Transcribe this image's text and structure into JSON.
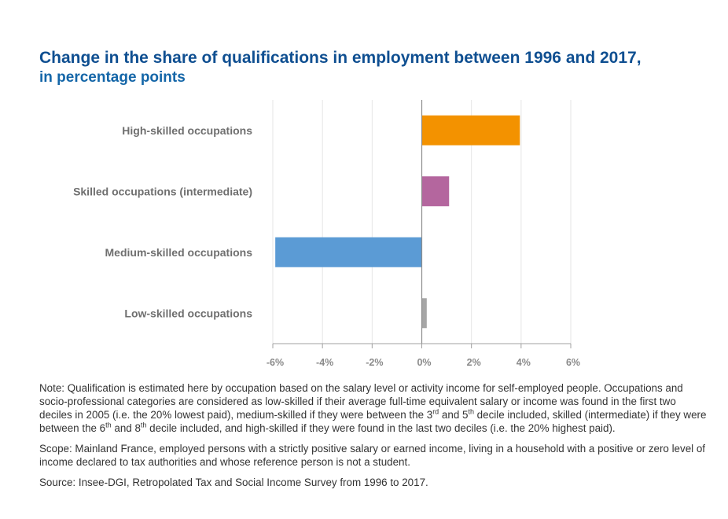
{
  "title": "Change in the share of qualifications in employment between 1996 and 2017,",
  "subtitle": "in percentage points",
  "chart_data": {
    "type": "bar",
    "orientation": "horizontal",
    "categories": [
      "High-skilled occupations",
      "Skilled occupations (intermediate)",
      "Medium-skilled occupations",
      "Low-skilled occupations"
    ],
    "values": [
      3.95,
      1.1,
      -5.9,
      0.2
    ],
    "xlim": [
      -6,
      6
    ],
    "xticks": [
      -6,
      -4,
      -2,
      0,
      2,
      4,
      6
    ],
    "xtick_labels": [
      "-6%",
      "-4%",
      "-2%",
      "0%",
      "2%",
      "4%",
      "6%"
    ],
    "grid": "vertical",
    "colors": [
      "#f39200",
      "#b4669e",
      "#5b9bd5",
      "#a6a6a6"
    ]
  },
  "notes": {
    "note": [
      "Note: Qualification is estimated here by occupation based on the salary level or activity income for self-employed people. Occupations and socio-professional categories are considered as low-skilled if their average full-time equivalent salary or income was found in the first two deciles in 2005 (i.e. the 20% lowest paid), medium-skilled if they were between the 3",
      "rd",
      " and 5",
      "th",
      " decile included, skilled (intermediate) if they were between the 6",
      "th",
      " and 8",
      "th",
      " decile included, and high-skilled if they were found in the last two deciles (i.e. the 20% highest paid)."
    ],
    "scope": "Scope: Mainland France, employed persons with a strictly positive salary or earned income, living in a household with a positive or zero level of income declared to tax authorities and whose reference person is not a student.",
    "source": "Source: Insee-DGI, Retropolated Tax and Social Income Survey from 1996 to 2017."
  }
}
